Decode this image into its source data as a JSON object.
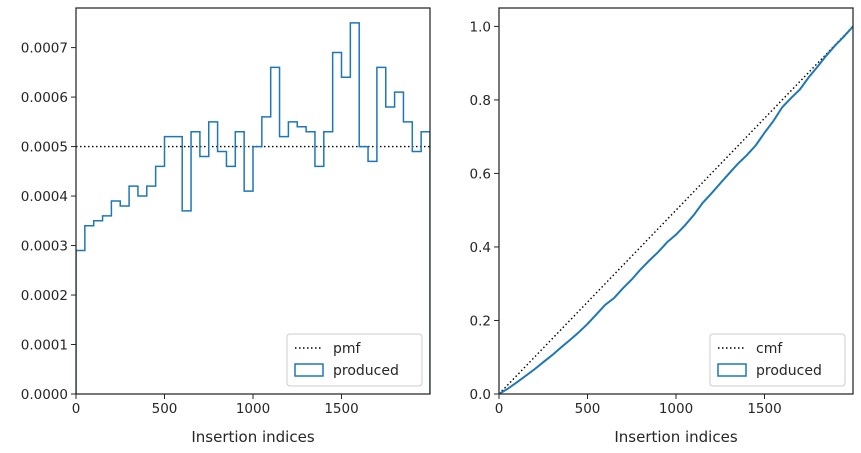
{
  "chart_data": [
    {
      "type": "histogram",
      "xlabel": "Insertion indices",
      "ylabel": "",
      "xlim": [
        0,
        2000
      ],
      "ylim": [
        0,
        0.00078
      ],
      "xticks": [
        0,
        500,
        1000,
        1500
      ],
      "yticks": [
        0,
        0.0001,
        0.0002,
        0.0003,
        0.0004,
        0.0005,
        0.0006,
        0.0007
      ],
      "ytick_labels": [
        "0.0000",
        "0.0001",
        "0.0002",
        "0.0003",
        "0.0004",
        "0.0005",
        "0.0006",
        "0.0007"
      ],
      "legend_position": "bottom-right",
      "bin_edges": [
        0,
        50,
        100,
        150,
        200,
        250,
        300,
        350,
        400,
        450,
        500,
        550,
        600,
        650,
        700,
        750,
        800,
        850,
        900,
        950,
        1000,
        1050,
        1100,
        1150,
        1200,
        1250,
        1300,
        1350,
        1400,
        1450,
        1500,
        1550,
        1600,
        1650,
        1700,
        1750,
        1800,
        1850,
        1900,
        1950,
        2000
      ],
      "series": [
        {
          "name": "pmf",
          "style": "dotted",
          "color": "#000000",
          "value": 0.0005
        },
        {
          "name": "produced",
          "style": "step",
          "color": "#1f77b4",
          "values": [
            0.00029,
            0.00034,
            0.00035,
            0.00036,
            0.00039,
            0.00038,
            0.00042,
            0.0004,
            0.00042,
            0.00046,
            0.00052,
            0.00052,
            0.00037,
            0.00053,
            0.00048,
            0.00055,
            0.00049,
            0.00046,
            0.00053,
            0.00041,
            0.0005,
            0.00056,
            0.00066,
            0.00052,
            0.00055,
            0.00054,
            0.00053,
            0.00046,
            0.00053,
            0.00069,
            0.00064,
            0.00075,
            0.0005,
            0.00047,
            0.00066,
            0.00058,
            0.00061,
            0.00055,
            0.00049,
            0.00053
          ]
        }
      ]
    },
    {
      "type": "line",
      "xlabel": "Insertion indices",
      "ylabel": "",
      "xlim": [
        0,
        2000
      ],
      "ylim": [
        0,
        1.05
      ],
      "xticks": [
        0,
        500,
        1000,
        1500
      ],
      "yticks": [
        0,
        0.2,
        0.4,
        0.6,
        0.8,
        1.0
      ],
      "ytick_labels": [
        "0.0",
        "0.2",
        "0.4",
        "0.6",
        "0.8",
        "1.0"
      ],
      "legend_position": "bottom-right",
      "series": [
        {
          "name": "cmf",
          "style": "dotted",
          "color": "#000000",
          "x": [
            0,
            2000
          ],
          "y": [
            0,
            1.0
          ]
        },
        {
          "name": "produced",
          "style": "step",
          "color": "#1f77b4",
          "x": [
            0,
            50,
            100,
            150,
            200,
            250,
            300,
            350,
            400,
            450,
            500,
            550,
            600,
            650,
            700,
            750,
            800,
            850,
            900,
            950,
            1000,
            1050,
            1100,
            1150,
            1200,
            1250,
            1300,
            1350,
            1400,
            1450,
            1500,
            1550,
            1600,
            1650,
            1700,
            1750,
            1800,
            1850,
            1900,
            1950,
            2000
          ],
          "y": [
            0,
            0.0145,
            0.0315,
            0.049,
            0.067,
            0.0865,
            0.1055,
            0.1265,
            0.1465,
            0.1675,
            0.1905,
            0.2165,
            0.2425,
            0.261,
            0.2875,
            0.3115,
            0.339,
            0.3635,
            0.3865,
            0.413,
            0.4335,
            0.4585,
            0.4865,
            0.5195,
            0.5455,
            0.573,
            0.6,
            0.6265,
            0.6495,
            0.676,
            0.7105,
            0.7425,
            0.78,
            0.805,
            0.8285,
            0.8615,
            0.8905,
            0.921,
            0.9485,
            0.973,
            1.0
          ]
        }
      ]
    }
  ]
}
